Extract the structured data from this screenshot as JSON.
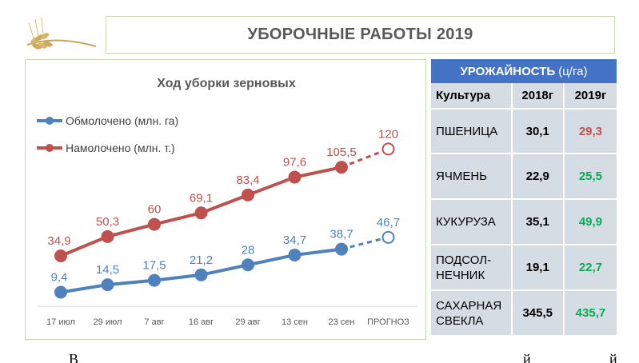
{
  "header": {
    "title": "УБОРОЧНЫЕ РАБОТЫ 2019"
  },
  "yield_table": {
    "title_bold": "УРОЖАЙНОСТЬ",
    "title_unit": "(ц/га)",
    "columns": [
      "Культура",
      "2018г",
      "2019г"
    ],
    "rows": [
      {
        "crop": "ПШЕНИЦА",
        "y2018": "30,1",
        "y2019": "29,3",
        "color2019": "#c0504d"
      },
      {
        "crop": "ЯЧМЕНЬ",
        "y2018": "22,9",
        "y2019": "25,5",
        "color2019": "#00b050"
      },
      {
        "crop": "КУКУРУЗА",
        "y2018": "35,1",
        "y2019": "49,9",
        "color2019": "#00b050"
      },
      {
        "crop": "ПОДСОЛ-\nНЕЧНИК",
        "y2018": "19,1",
        "y2019": "22,7",
        "color2019": "#00b050"
      },
      {
        "crop": "САХАРНАЯ\nСВЕКЛА",
        "y2018": "345,5",
        "y2019": "435,7",
        "color2019": "#00b050"
      }
    ]
  },
  "chart_data": {
    "type": "line",
    "title": "Ход уборки зерновых",
    "categories": [
      "17 июл",
      "29 июл",
      "7 авг",
      "16 авг",
      "29 авг",
      "13 сен",
      "23 сен",
      "ПРОГНОЗ"
    ],
    "series": [
      {
        "name": "Обмолочено (млн. га)",
        "color": "#4f81bd",
        "values": [
          9.4,
          14.5,
          17.5,
          21.2,
          28,
          34.7,
          38.7,
          46.7
        ],
        "labels": [
          "9,4",
          "14,5",
          "17,5",
          "21,2",
          "28",
          "34,7",
          "38,7",
          "46,7"
        ]
      },
      {
        "name": "Намолочено (млн. т.)",
        "color": "#c0504d",
        "values": [
          34.9,
          50.3,
          60,
          69.1,
          83.4,
          97.6,
          105.5,
          120
        ],
        "labels": [
          "34,9",
          "50,3",
          "60",
          "69,1",
          "83,4",
          "97,6",
          "105,5",
          "120"
        ]
      }
    ],
    "forecast_last_point": true,
    "legend_position": "top-left",
    "grid": false
  }
}
